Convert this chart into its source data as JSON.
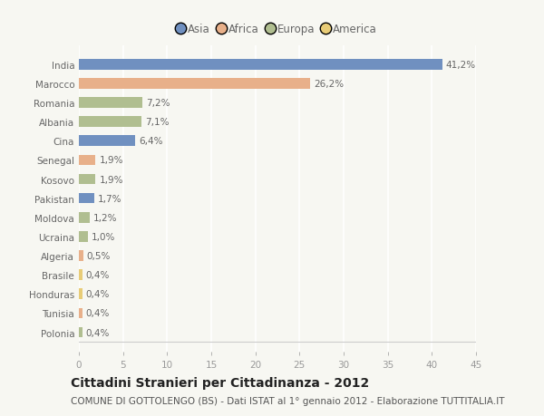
{
  "countries": [
    "India",
    "Marocco",
    "Romania",
    "Albania",
    "Cina",
    "Senegal",
    "Kosovo",
    "Pakistan",
    "Moldova",
    "Ucraina",
    "Algeria",
    "Brasile",
    "Honduras",
    "Tunisia",
    "Polonia"
  ],
  "values": [
    41.2,
    26.2,
    7.2,
    7.1,
    6.4,
    1.9,
    1.9,
    1.7,
    1.2,
    1.0,
    0.5,
    0.4,
    0.4,
    0.4,
    0.4
  ],
  "labels": [
    "41,2%",
    "26,2%",
    "7,2%",
    "7,1%",
    "6,4%",
    "1,9%",
    "1,9%",
    "1,7%",
    "1,2%",
    "1,0%",
    "0,5%",
    "0,4%",
    "0,4%",
    "0,4%",
    "0,4%"
  ],
  "continents": [
    "Asia",
    "Africa",
    "Europa",
    "Europa",
    "Asia",
    "Africa",
    "Europa",
    "Asia",
    "Europa",
    "Europa",
    "Africa",
    "America",
    "America",
    "Africa",
    "Europa"
  ],
  "colors": {
    "Asia": "#7090c0",
    "Africa": "#e8b08a",
    "Europa": "#b0be90",
    "America": "#e8cc77"
  },
  "legend_order": [
    "Asia",
    "Africa",
    "Europa",
    "America"
  ],
  "legend_colors": [
    "#7090c0",
    "#e8b08a",
    "#b0be90",
    "#e8cc77"
  ],
  "bg_color": "#f7f7f2",
  "grid_color": "#ffffff",
  "xlim": [
    0,
    45
  ],
  "xticks": [
    0,
    5,
    10,
    15,
    20,
    25,
    30,
    35,
    40,
    45
  ],
  "title": "Cittadini Stranieri per Cittadinanza - 2012",
  "subtitle": "COMUNE DI GOTTOLENGO (BS) - Dati ISTAT al 1° gennaio 2012 - Elaborazione TUTTITALIA.IT",
  "title_fontsize": 10,
  "subtitle_fontsize": 7.5,
  "tick_fontsize": 7.5,
  "label_fontsize": 7.5
}
